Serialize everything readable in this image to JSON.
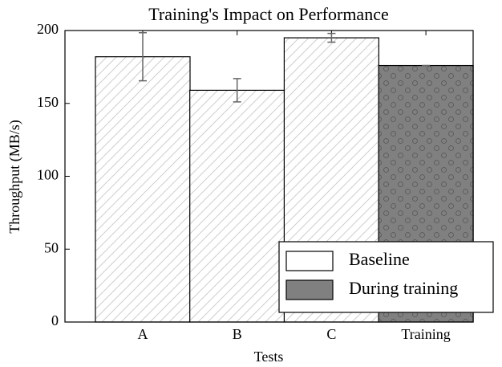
{
  "chart_data": {
    "type": "bar",
    "title": "Training's Impact on Performance",
    "x_label": "Tests",
    "y_label": "Throughput (MB/s)",
    "categories": [
      "A",
      "B",
      "C",
      "Training"
    ],
    "series": [
      {
        "name": "Baseline",
        "color": "#ffffff",
        "hatch": "/",
        "values": [
          182,
          159,
          195,
          null
        ],
        "errors": [
          16.5,
          8,
          3,
          null
        ]
      },
      {
        "name": "During training",
        "color": "#808080",
        "hatch": "o",
        "values": [
          null,
          null,
          null,
          176
        ],
        "errors": [
          null,
          null,
          null,
          0
        ]
      }
    ],
    "ylim": [
      0,
      200
    ],
    "yticks": [
      0,
      50,
      100,
      150,
      200
    ],
    "legend": "lower right"
  }
}
